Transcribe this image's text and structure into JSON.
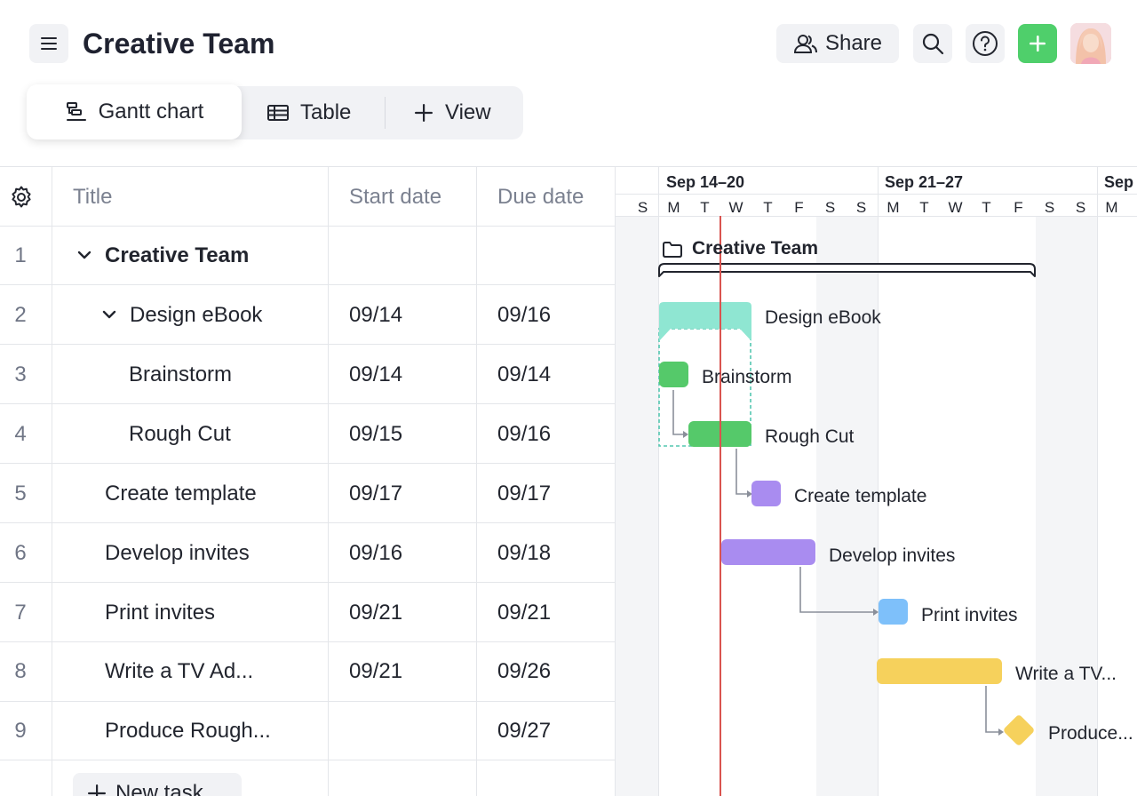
{
  "header": {
    "title": "Creative Team",
    "share_label": "Share",
    "icons": {
      "menu": "hamburger-icon",
      "share": "users-icon",
      "search": "search-icon",
      "help": "help-icon",
      "add": "plus-icon"
    },
    "accent_color": "#4fcf6b"
  },
  "views": {
    "tabs": [
      {
        "label": "Gantt chart",
        "icon": "gantt-icon",
        "active": true
      },
      {
        "label": "Table",
        "icon": "table-icon",
        "active": false
      },
      {
        "label": "View",
        "icon": "plus-icon",
        "active": false
      }
    ]
  },
  "table": {
    "columns": {
      "title": "Title",
      "start": "Start date",
      "due": "Due date"
    },
    "rows": [
      {
        "num": "1",
        "title": "Creative Team",
        "start": "",
        "due": ""
      },
      {
        "num": "2",
        "title": "Design eBook",
        "start": "09/14",
        "due": "09/16"
      },
      {
        "num": "3",
        "title": "Brainstorm",
        "start": "09/14",
        "due": "09/14"
      },
      {
        "num": "4",
        "title": "Rough Cut",
        "start": "09/15",
        "due": "09/16"
      },
      {
        "num": "5",
        "title": "Create template",
        "start": "09/17",
        "due": "09/17"
      },
      {
        "num": "6",
        "title": "Develop invites",
        "start": "09/16",
        "due": "09/18"
      },
      {
        "num": "7",
        "title": "Print invites",
        "start": "09/21",
        "due": "09/21"
      },
      {
        "num": "8",
        "title": "Write a TV Ad...",
        "start": "09/21",
        "due": "09/26"
      },
      {
        "num": "9",
        "title": "Produce Rough...",
        "start": "",
        "due": "09/27"
      }
    ],
    "new_task_label": "New task"
  },
  "gantt": {
    "weeks": [
      "Sep 14–20",
      "Sep 21–27",
      "Sep"
    ],
    "days": [
      "S",
      "M",
      "T",
      "W",
      "T",
      "F",
      "S",
      "S",
      "M",
      "T",
      "W",
      "T",
      "F",
      "S",
      "S",
      "M"
    ],
    "group_label": "Creative Team",
    "bars": [
      {
        "label": "Design eBook",
        "color": "#8fe6d2"
      },
      {
        "label": "Brainstorm",
        "color": "#55c96a"
      },
      {
        "label": "Rough Cut",
        "color": "#55c96a"
      },
      {
        "label": "Create template",
        "color": "#a98cf0"
      },
      {
        "label": "Develop invites",
        "color": "#a98cf0"
      },
      {
        "label": "Print invites",
        "color": "#7ec0fa"
      },
      {
        "label": "Write a TV...",
        "color": "#f6d15c"
      },
      {
        "label": "Produce...",
        "color": "#f6d15c"
      }
    ],
    "today_line_color": "#d9534f"
  }
}
